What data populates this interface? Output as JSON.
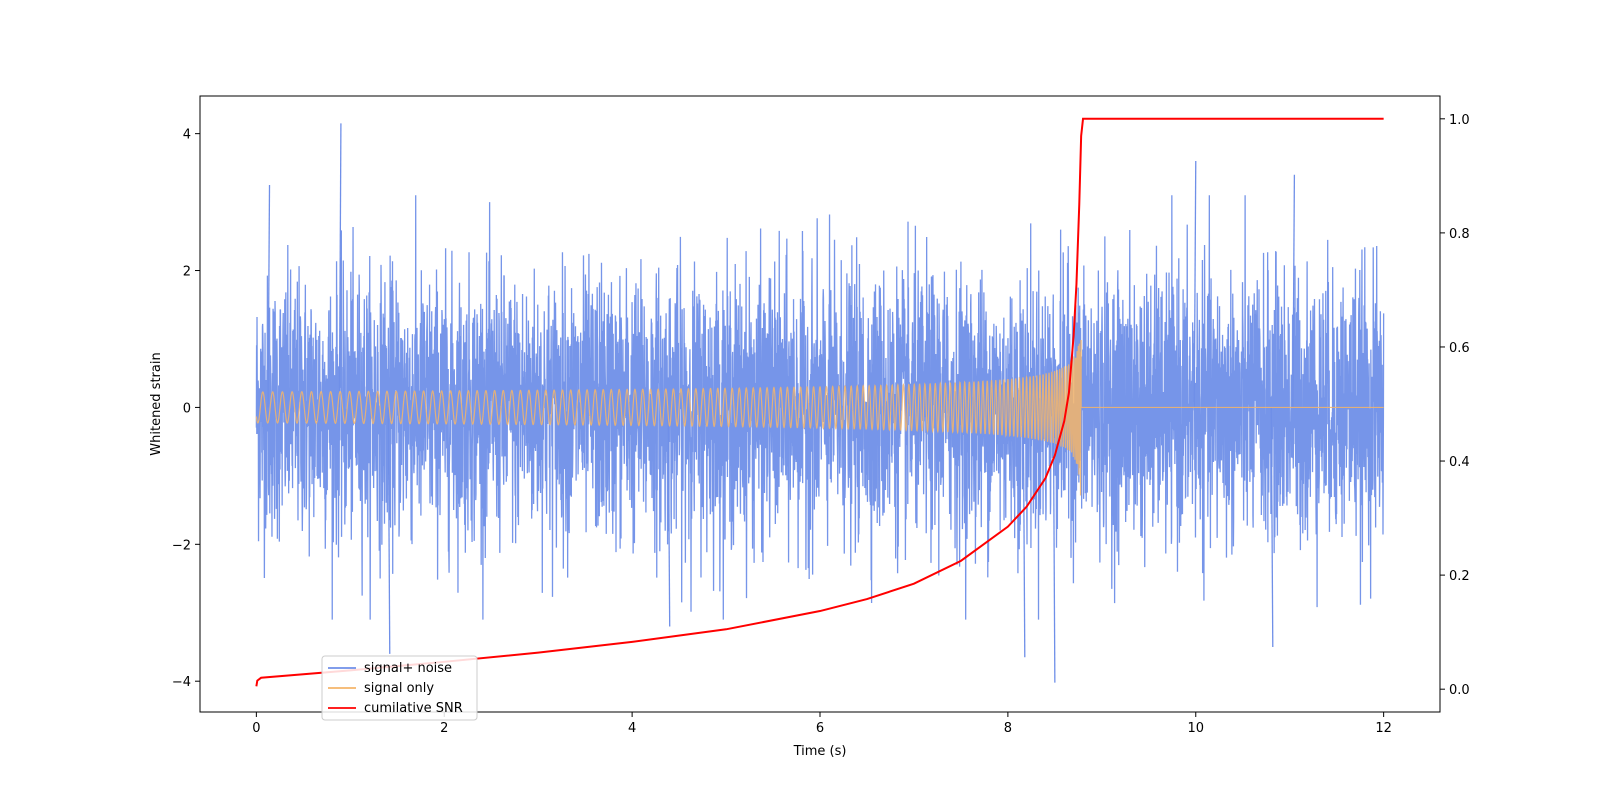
{
  "chart_data": {
    "type": "line",
    "title": "",
    "xlabel": "Time (s)",
    "ylabel": "Whitened strain",
    "y2label": "",
    "xlim": [
      -0.6,
      12.6
    ],
    "ylim": [
      -4.45,
      4.55
    ],
    "y2lim": [
      -0.04,
      1.04
    ],
    "xticks": [
      0,
      2,
      4,
      6,
      8,
      10,
      12
    ],
    "yticks": [
      -4,
      -2,
      0,
      2,
      4
    ],
    "y2ticks": [
      0.0,
      0.2,
      0.4,
      0.6,
      0.8,
      1.0
    ],
    "grid": false,
    "legend_position": "lower-left",
    "colors": {
      "noise": "#6f8fe8",
      "signal": "#f5b56a",
      "snr": "#ff0000"
    },
    "series": [
      {
        "name": "signal+ noise",
        "axis": "left",
        "description_of_data": "white noise, std ~1, spanning 0 to 12 s",
        "x_start": 0,
        "x_end": 12,
        "std": 1.0,
        "spikes": [
          {
            "x": 0.9,
            "y": 4.15
          },
          {
            "x": 0.14,
            "y": 3.25
          },
          {
            "x": 10.0,
            "y": 3.6
          },
          {
            "x": 11.05,
            "y": 3.4
          },
          {
            "x": 1.42,
            "y": -3.6
          },
          {
            "x": 8.18,
            "y": -3.65
          },
          {
            "x": 8.5,
            "y": -4.02
          },
          {
            "x": 10.82,
            "y": -3.5
          },
          {
            "x": 4.4,
            "y": -3.2
          }
        ]
      },
      {
        "name": "signal only",
        "axis": "left",
        "chirp_start": 0,
        "chirp_merger": 8.78,
        "end": 12,
        "peak_amplitude": 1.55,
        "start_amplitude": 0.02
      },
      {
        "name": "cumilative SNR",
        "axis": "right",
        "x": [
          0.0,
          0.01,
          0.05,
          1,
          2,
          3,
          4,
          5,
          6,
          6.5,
          7,
          7.5,
          8,
          8.2,
          8.4,
          8.5,
          8.6,
          8.65,
          8.7,
          8.73,
          8.76,
          8.78,
          8.8,
          12
        ],
        "y": [
          0.005,
          0.015,
          0.02,
          0.033,
          0.048,
          0.064,
          0.083,
          0.105,
          0.137,
          0.158,
          0.185,
          0.225,
          0.285,
          0.32,
          0.37,
          0.41,
          0.47,
          0.52,
          0.62,
          0.71,
          0.85,
          0.97,
          1.0,
          1.0
        ]
      }
    ]
  }
}
